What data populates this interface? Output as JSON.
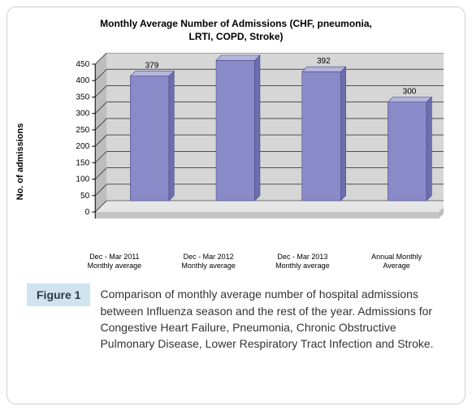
{
  "chart": {
    "type": "bar-3d",
    "title_line1": "Monthly Average Number of Admissions (CHF, pneumonia,",
    "title_line2": "LRTI, COPD, Stroke)",
    "title_fontsize": 12,
    "ylabel": "No. of admissions",
    "label_fontsize": 11,
    "ylim": [
      0,
      450
    ],
    "ytick_step": 50,
    "yticks": [
      0,
      50,
      100,
      150,
      200,
      250,
      300,
      350,
      400,
      450
    ],
    "categories": [
      {
        "line1": "Dec - Mar 2011",
        "line2": "Monthly average"
      },
      {
        "line1": "Dec - Mar 2012",
        "line2": "Monthly average"
      },
      {
        "line1": "Dec - Mar 2013",
        "line2": "Monthly average"
      },
      {
        "line1": "Annual Monthly",
        "line2": "Average"
      }
    ],
    "values": [
      379,
      427,
      392,
      300
    ],
    "bar_depth": 14,
    "colors": {
      "bar_front": "#8a8ac8",
      "bar_top": "#b4b4de",
      "bar_side": "#6e6eae",
      "floor_front": "#c4c4c4",
      "floor_top": "#e6e6e6",
      "back_wall": "#d6d6d6",
      "side_wall": "#bdbdbd",
      "axis": "#000000",
      "grid": "#000000",
      "background": "#ffffff"
    }
  },
  "caption": {
    "figure_label": "Figure 1",
    "text": "Comparison of monthly average number of hospital admissions between Influenza season and the rest of the year. Admissions for Congestive Heart Failure, Pneumonia, Chronic Obstructive Pulmonary Disease, Lower Respiratory Tract Infection and Stroke."
  },
  "styles": {
    "figure_tag_bg": "#d0e4ef",
    "figure_tag_color": "#2a3a4a",
    "panel_border": "#d0d0d0"
  }
}
